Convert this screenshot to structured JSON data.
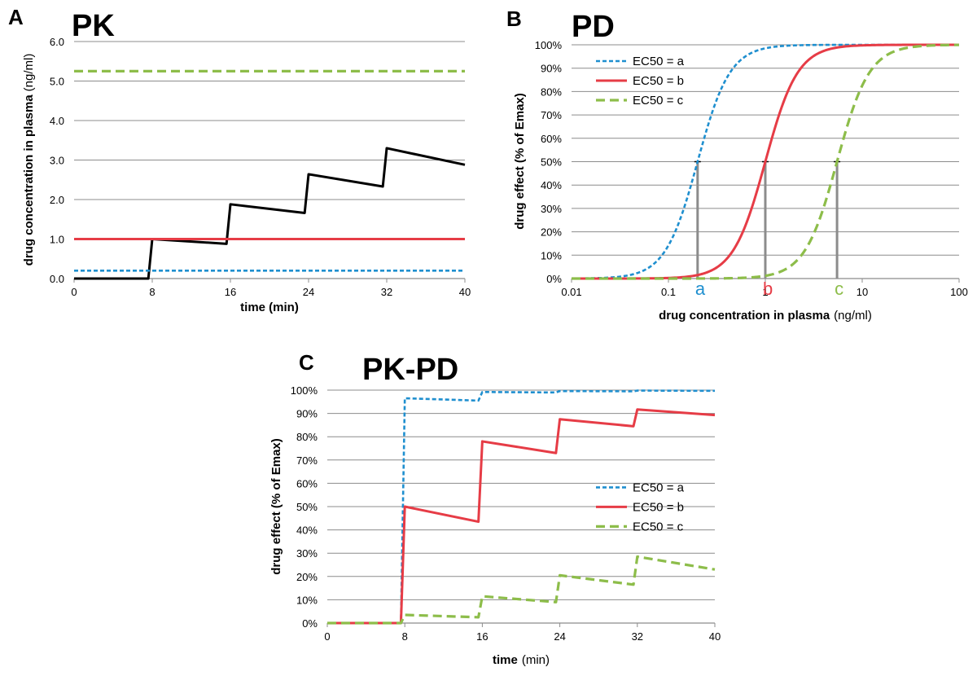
{
  "chart_data": [
    {
      "panel": "A",
      "title": "PK",
      "type": "line",
      "xlabel": "time (min)",
      "ylabel": "drug concentration in plasma (ng/ml)",
      "ylabel_bold": "drug concentration in plasma",
      "ylabel_unit": "(ng/ml)",
      "xlim": [
        0,
        40
      ],
      "ylim": [
        0,
        6
      ],
      "x_ticks": [
        0,
        8,
        16,
        24,
        32,
        40
      ],
      "y_ticks": [
        0,
        1,
        2,
        3,
        4,
        5,
        6
      ],
      "y_tick_labels": [
        "0.0",
        "1.0",
        "2.0",
        "3.0",
        "4.0",
        "5.0",
        "6.0"
      ],
      "grid": true,
      "series": [
        {
          "x": [
            0,
            7.6,
            8,
            15.6,
            16,
            23.6,
            24,
            31.6,
            32,
            40
          ],
          "y": [
            0,
            0,
            1.0,
            0.88,
            1.88,
            1.66,
            2.64,
            2.33,
            3.3,
            2.88
          ],
          "color": "#000000",
          "style": "solid"
        },
        {
          "x": [
            0,
            40
          ],
          "y": [
            5.25,
            5.25
          ],
          "color": "#8dbd4a",
          "style": "dashed"
        },
        {
          "x": [
            0,
            40
          ],
          "y": [
            1.0,
            1.0
          ],
          "color": "#e63c46",
          "style": "solid"
        },
        {
          "x": [
            0,
            40
          ],
          "y": [
            0.2,
            0.2
          ],
          "color": "#1f8fcf",
          "style": "dotted"
        }
      ]
    },
    {
      "panel": "B",
      "title": "PD",
      "type": "line",
      "xscale": "log",
      "xlabel_bold": "drug concentration in plasma",
      "xlabel_unit": "(ng/ml)",
      "ylabel": "drug effect (% of Emax)",
      "xlim": [
        0.01,
        100
      ],
      "ylim": [
        0,
        100
      ],
      "x_ticks": [
        0.01,
        0.1,
        1,
        10,
        100
      ],
      "x_tick_labels": [
        "0.01",
        "0.1",
        "1",
        "10",
        "100"
      ],
      "y_ticks": [
        0,
        10,
        20,
        30,
        40,
        50,
        60,
        70,
        80,
        90,
        100
      ],
      "y_tick_labels": [
        "0%",
        "10%",
        "20%",
        "30%",
        "40%",
        "50%",
        "60%",
        "70%",
        "80%",
        "90%",
        "100%"
      ],
      "grid": true,
      "legend_position": "top-left",
      "ec50_markers": [
        {
          "letter": "a",
          "x": 0.2,
          "color": "#1f8fcf"
        },
        {
          "letter": "b",
          "x": 1.0,
          "color": "#e63c46"
        },
        {
          "letter": "c",
          "x": 5.5,
          "color": "#8dbd4a"
        }
      ],
      "series": [
        {
          "name": "EC50 = a",
          "ec50": 0.2,
          "hill": 2.6,
          "color": "#1f8fcf",
          "style": "dotted"
        },
        {
          "name": "EC50 = b",
          "ec50": 1.0,
          "hill": 2.6,
          "color": "#e63c46",
          "style": "solid"
        },
        {
          "name": "EC50 = c",
          "ec50": 5.5,
          "hill": 2.6,
          "color": "#8dbd4a",
          "style": "dashed"
        }
      ]
    },
    {
      "panel": "C",
      "title": "PK-PD",
      "type": "line",
      "xlabel_bold": "time",
      "xlabel_unit": "(min)",
      "ylabel": "drug effect (% of Emax)",
      "xlim": [
        0,
        40
      ],
      "ylim": [
        0,
        100
      ],
      "x_ticks": [
        0,
        8,
        16,
        24,
        32,
        40
      ],
      "y_ticks": [
        0,
        10,
        20,
        30,
        40,
        50,
        60,
        70,
        80,
        90,
        100
      ],
      "y_tick_labels": [
        "0%",
        "10%",
        "20%",
        "30%",
        "40%",
        "50%",
        "60%",
        "70%",
        "80%",
        "90%",
        "100%"
      ],
      "grid": true,
      "legend_position": "center-right",
      "series": [
        {
          "name": "EC50 = a",
          "color": "#1f8fcf",
          "style": "dotted",
          "x": [
            0,
            7.6,
            8,
            15.6,
            16,
            23.6,
            24,
            31.6,
            32,
            40
          ],
          "y": [
            0,
            0,
            96.5,
            95.5,
            99.2,
            99.0,
            99.6,
            99.5,
            99.8,
            99.7
          ]
        },
        {
          "name": "EC50 = b",
          "color": "#e63c46",
          "style": "solid",
          "x": [
            0,
            7.6,
            8,
            15.6,
            16,
            23.6,
            24,
            31.6,
            32,
            40
          ],
          "y": [
            0,
            0,
            50,
            43.5,
            78,
            73,
            87.5,
            84.5,
            91.7,
            89.3
          ]
        },
        {
          "name": "EC50 = c",
          "color": "#8dbd4a",
          "style": "dashed",
          "x": [
            0,
            7.6,
            8,
            15.6,
            16,
            23.6,
            24,
            31.6,
            32,
            40
          ],
          "y": [
            0,
            0,
            3.5,
            2.5,
            11.5,
            9.0,
            20.5,
            16.5,
            28.5,
            23.0
          ]
        }
      ]
    }
  ]
}
